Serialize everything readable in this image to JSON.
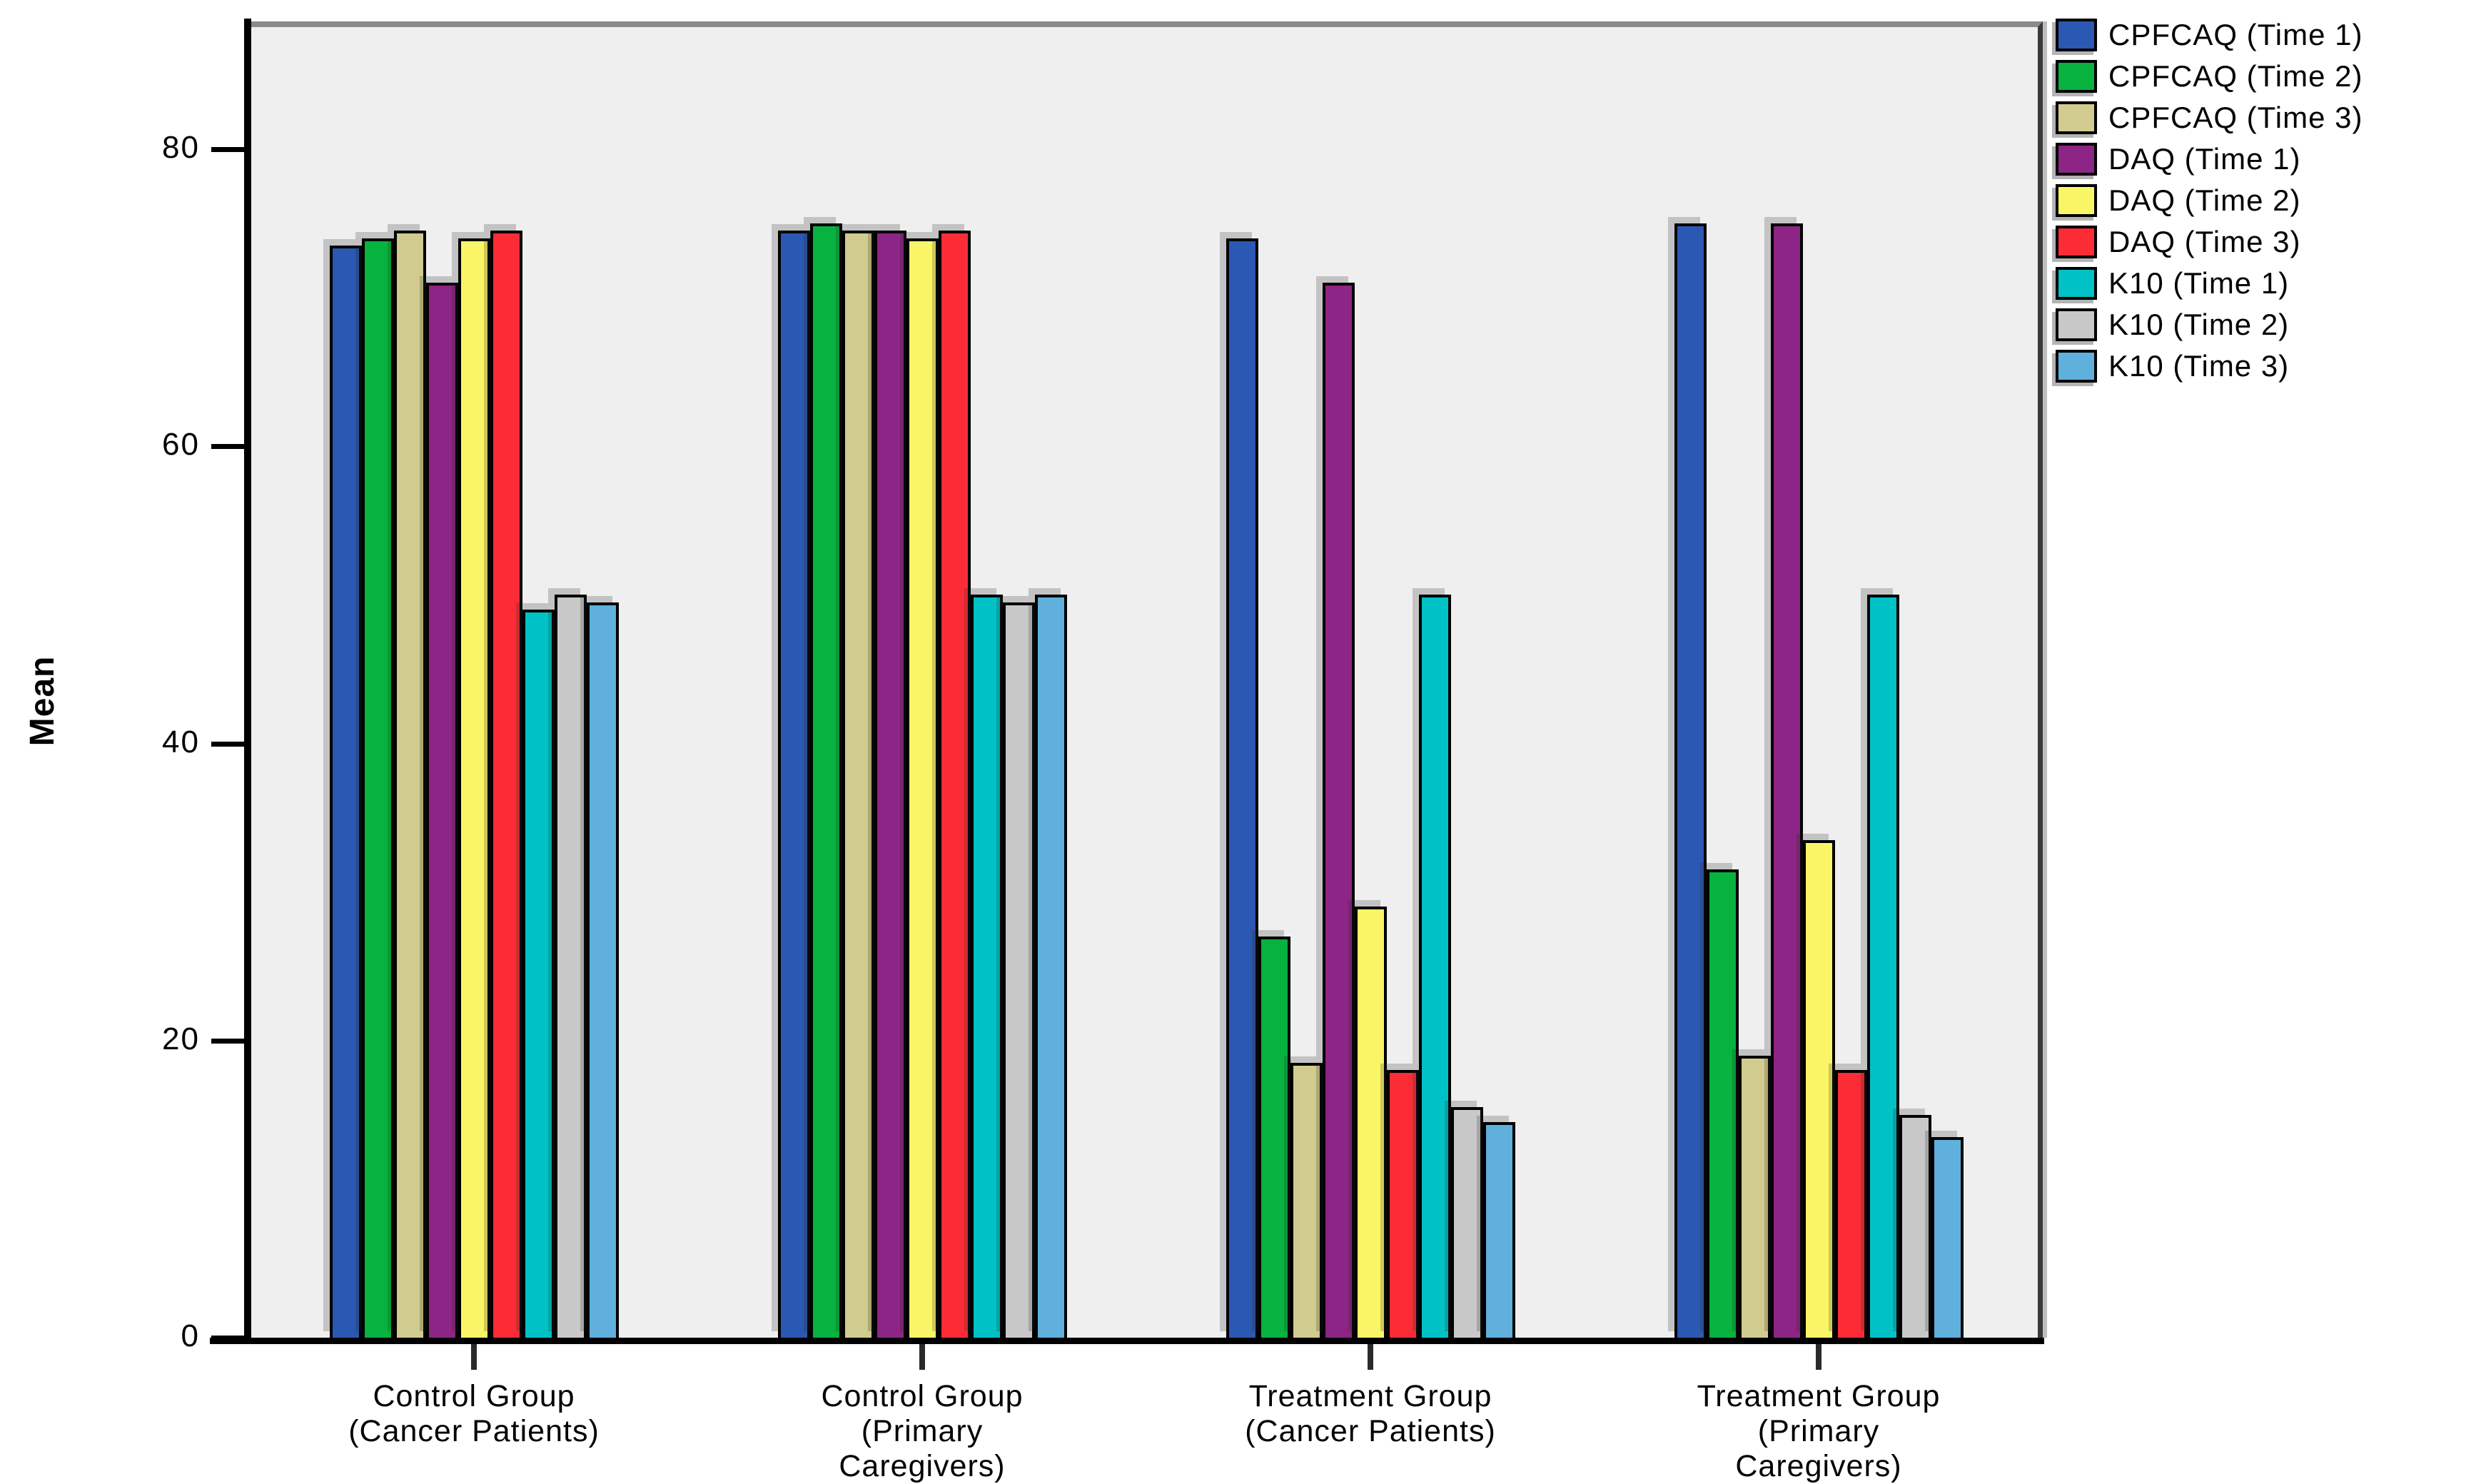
{
  "chart_data": {
    "type": "bar",
    "title": "",
    "ylabel": "Mean",
    "xlabel": "",
    "ylim": [
      0,
      88
    ],
    "yticks": [
      0,
      20,
      40,
      60,
      80
    ],
    "grid": false,
    "legend_position": "top-right-outside",
    "plot_background": "#efefef",
    "categories": [
      {
        "label": "Control Group (Cancer Patients)",
        "lines": [
          "Control Group",
          "(Cancer Patients)"
        ]
      },
      {
        "label": "Control Group (Primary Caregivers)",
        "lines": [
          "Control Group",
          "(Primary",
          "Caregivers)"
        ]
      },
      {
        "label": "Treatment Group (Cancer Patients)",
        "lines": [
          "Treatment Group",
          "(Cancer Patients)"
        ]
      },
      {
        "label": "Treatment Group (Primary Caregivers)",
        "lines": [
          "Treatment Group",
          "(Primary",
          "Caregivers)"
        ]
      }
    ],
    "series": [
      {
        "name": "CPFCAQ (Time 1)",
        "color": "#2b58b2",
        "values": [
          73.5,
          74.5,
          74,
          75
        ]
      },
      {
        "name": "CPFCAQ (Time 2)",
        "color": "#07b23e",
        "values": [
          74,
          75,
          27,
          31.5
        ]
      },
      {
        "name": "CPFCAQ (Time 3)",
        "color": "#d2cb8f",
        "values": [
          74.5,
          74.5,
          18.5,
          19
        ]
      },
      {
        "name": "DAQ (Time 1)",
        "color": "#8c2585",
        "values": [
          71,
          74.5,
          71,
          75
        ]
      },
      {
        "name": "DAQ (Time 2)",
        "color": "#faf566",
        "values": [
          74,
          74,
          29,
          33.5
        ]
      },
      {
        "name": "DAQ (Time 3)",
        "color": "#fb2c35",
        "values": [
          74.5,
          74.5,
          18,
          18
        ]
      },
      {
        "name": "K10 (Time 1)",
        "color": "#00c2c6",
        "values": [
          49,
          50,
          50,
          50
        ]
      },
      {
        "name": "K10 (Time 2)",
        "color": "#c8c8c8",
        "values": [
          50,
          49.5,
          15.5,
          15
        ]
      },
      {
        "name": "K10 (Time 3)",
        "color": "#5fb0dc",
        "values": [
          49.5,
          50,
          14.5,
          13.5
        ]
      }
    ]
  },
  "axis": {
    "y_tick_labels": [
      "0",
      "20",
      "40",
      "60",
      "80"
    ]
  }
}
